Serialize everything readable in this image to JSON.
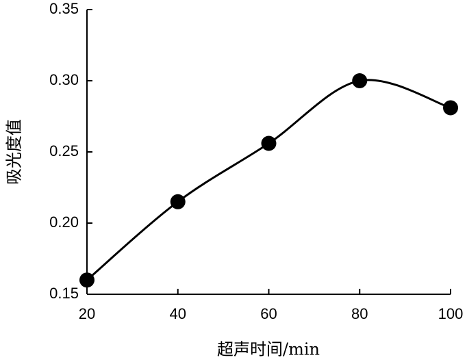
{
  "chart_data": {
    "type": "line",
    "x_label": "超声时间/min",
    "y_label": "吸光度值",
    "series": [
      {
        "name": "吸光度值",
        "color": "#000000",
        "x": [
          20,
          40,
          60,
          80,
          100
        ],
        "values": [
          0.16,
          0.215,
          0.256,
          0.3,
          0.281
        ]
      }
    ],
    "xlim": [
      20,
      100
    ],
    "xticks": [
      20,
      40,
      60,
      80,
      100
    ],
    "ylim": [
      0.15,
      0.35
    ],
    "yticks": [
      0.15,
      {
        "value": 0.2,
        "label": "0.20"
      },
      0.25,
      {
        "value": 0.3,
        "label": "0.30"
      },
      0.35
    ],
    "grid": false
  }
}
